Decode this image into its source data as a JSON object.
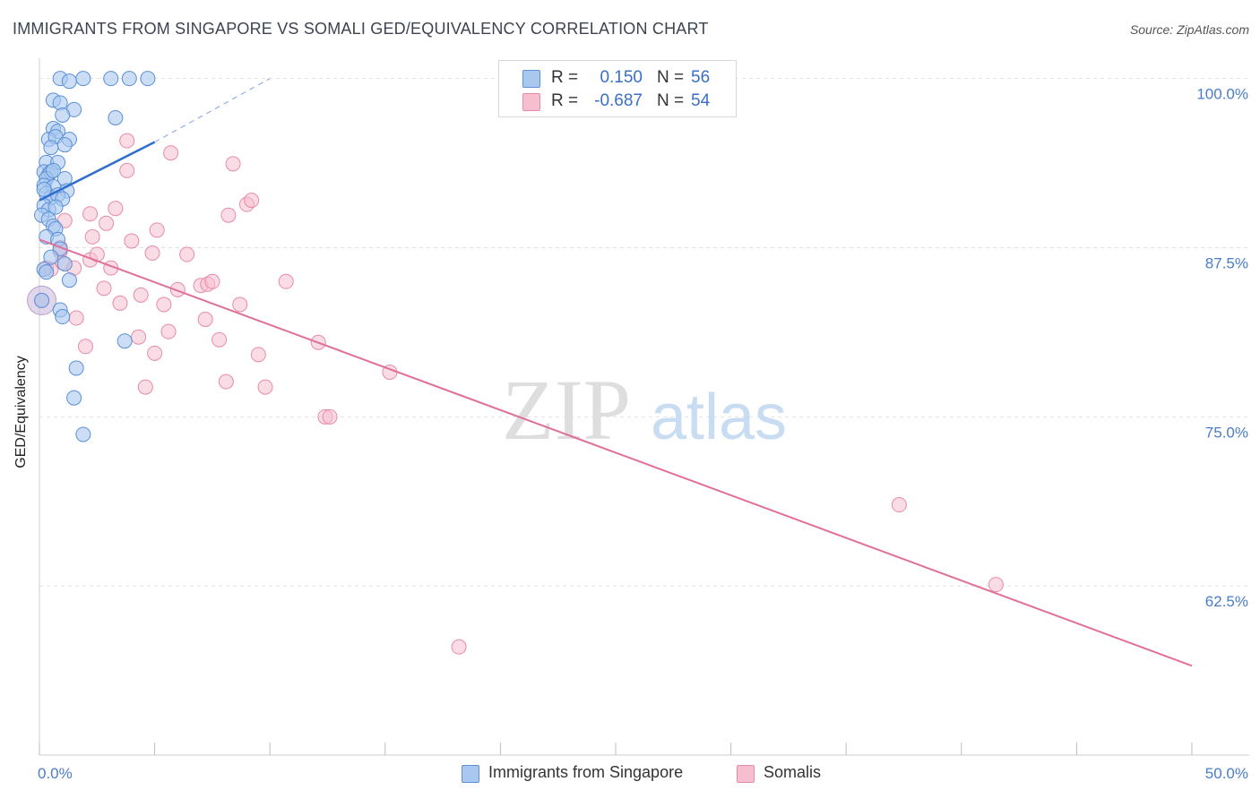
{
  "title": "IMMIGRANTS FROM SINGAPORE VS SOMALI GED/EQUIVALENCY CORRELATION CHART",
  "source": "Source: ZipAtlas.com",
  "watermark": {
    "zip": "ZIP",
    "atlas": "atlas"
  },
  "colors": {
    "blue_fill": "#a9c8f0",
    "blue_stroke": "#5b8fd6",
    "blue_line": "#2f6fd0",
    "pink_fill": "#f6bfd0",
    "pink_stroke": "#e88aa8",
    "pink_line": "#e0709a",
    "tick_label": "#4a7cc9",
    "grid": "#e2e2e2"
  },
  "legend": {
    "rows": [
      {
        "series": "Immigrants from Singapore",
        "r_label": "R =",
        "r_value": "0.150",
        "n_label": "N =",
        "n_value": "56"
      },
      {
        "series": "Somalis",
        "r_label": "R =",
        "r_value": "-0.687",
        "n_label": "N =",
        "n_value": "54"
      }
    ]
  },
  "bottom_legend": [
    "Immigrants from Singapore",
    "Somalis"
  ],
  "chart_data": {
    "type": "scatter",
    "title": "IMMIGRANTS FROM SINGAPORE VS SOMALI GED/EQUIVALENCY CORRELATION CHART",
    "xlabel": "",
    "ylabel": "GED/Equivalency",
    "xlim": [
      0,
      50
    ],
    "ylim": [
      50,
      101.5
    ],
    "x_tick_labels": [
      "0.0%",
      "50.0%"
    ],
    "y_ticks": [
      {
        "value": 62.5,
        "label": "62.5%"
      },
      {
        "value": 75,
        "label": "75.0%"
      },
      {
        "value": 87.5,
        "label": "87.5%"
      },
      {
        "value": 100,
        "label": "100.0%"
      }
    ],
    "series": [
      {
        "name": "Immigrants from Singapore",
        "points": [
          [
            0.9,
            100
          ],
          [
            1.3,
            99.8
          ],
          [
            1.9,
            100
          ],
          [
            3.1,
            100
          ],
          [
            3.9,
            100
          ],
          [
            4.7,
            100
          ],
          [
            0.6,
            98.4
          ],
          [
            0.9,
            98.2
          ],
          [
            1.5,
            97.7
          ],
          [
            1.0,
            97.3
          ],
          [
            3.3,
            97.1
          ],
          [
            0.6,
            96.3
          ],
          [
            0.8,
            96.1
          ],
          [
            0.4,
            95.5
          ],
          [
            0.7,
            95.7
          ],
          [
            1.3,
            95.5
          ],
          [
            0.5,
            94.9
          ],
          [
            1.1,
            95.1
          ],
          [
            0.3,
            93.8
          ],
          [
            0.8,
            93.8
          ],
          [
            0.2,
            93.1
          ],
          [
            0.4,
            92.9
          ],
          [
            0.5,
            93.1
          ],
          [
            0.3,
            92.6
          ],
          [
            1.1,
            92.6
          ],
          [
            0.2,
            92.1
          ],
          [
            0.6,
            92.0
          ],
          [
            1.2,
            91.7
          ],
          [
            0.3,
            91.5
          ],
          [
            0.5,
            91.2
          ],
          [
            0.8,
            91.4
          ],
          [
            1.0,
            91.1
          ],
          [
            0.2,
            90.6
          ],
          [
            0.4,
            90.3
          ],
          [
            0.7,
            90.5
          ],
          [
            0.1,
            89.9
          ],
          [
            0.4,
            89.6
          ],
          [
            0.6,
            89.1
          ],
          [
            0.7,
            88.9
          ],
          [
            0.3,
            88.3
          ],
          [
            0.8,
            88.1
          ],
          [
            0.9,
            87.4
          ],
          [
            0.5,
            86.8
          ],
          [
            1.1,
            86.3
          ],
          [
            0.2,
            85.9
          ],
          [
            0.3,
            85.7
          ],
          [
            1.3,
            85.1
          ],
          [
            0.1,
            83.6
          ],
          [
            0.9,
            82.9
          ],
          [
            1.0,
            82.4
          ],
          [
            3.7,
            80.6
          ],
          [
            1.6,
            78.6
          ],
          [
            1.5,
            76.4
          ],
          [
            1.9,
            73.7
          ],
          [
            0.2,
            91.8
          ],
          [
            0.6,
            93.2
          ]
        ],
        "trend": {
          "x": [
            0,
            5
          ],
          "y": [
            91.0,
            95.3
          ]
        },
        "trend_extension": {
          "x": [
            5,
            10
          ],
          "y": [
            95.3,
            100.0
          ]
        }
      },
      {
        "name": "Somalis",
        "points": [
          [
            0.1,
            83.6
          ],
          [
            0.3,
            86.0
          ],
          [
            0.5,
            85.9
          ],
          [
            0.9,
            87.2
          ],
          [
            1.0,
            86.4
          ],
          [
            1.1,
            89.5
          ],
          [
            1.5,
            86.0
          ],
          [
            1.6,
            82.3
          ],
          [
            2.0,
            80.2
          ],
          [
            2.2,
            86.6
          ],
          [
            2.2,
            90.0
          ],
          [
            2.3,
            88.3
          ],
          [
            2.5,
            87.0
          ],
          [
            2.8,
            84.5
          ],
          [
            2.9,
            89.3
          ],
          [
            3.1,
            86.0
          ],
          [
            3.3,
            90.4
          ],
          [
            3.5,
            83.4
          ],
          [
            3.8,
            93.2
          ],
          [
            3.8,
            95.4
          ],
          [
            4.0,
            88.0
          ],
          [
            4.3,
            80.9
          ],
          [
            4.4,
            84.0
          ],
          [
            4.6,
            77.2
          ],
          [
            4.9,
            87.1
          ],
          [
            5.0,
            79.7
          ],
          [
            5.1,
            88.8
          ],
          [
            5.4,
            83.3
          ],
          [
            5.6,
            81.3
          ],
          [
            5.7,
            94.5
          ],
          [
            6.0,
            84.4
          ],
          [
            6.4,
            87.0
          ],
          [
            7.0,
            84.7
          ],
          [
            7.2,
            82.2
          ],
          [
            7.3,
            84.8
          ],
          [
            7.5,
            85.0
          ],
          [
            7.8,
            80.7
          ],
          [
            8.1,
            77.6
          ],
          [
            8.2,
            89.9
          ],
          [
            8.4,
            93.7
          ],
          [
            8.7,
            83.3
          ],
          [
            9.0,
            90.7
          ],
          [
            9.2,
            91.0
          ],
          [
            9.5,
            79.6
          ],
          [
            9.8,
            77.2
          ],
          [
            10.7,
            85.0
          ],
          [
            12.1,
            80.5
          ],
          [
            12.4,
            75.0
          ],
          [
            12.6,
            75.0
          ],
          [
            15.2,
            78.3
          ],
          [
            18.2,
            58.0
          ],
          [
            37.3,
            68.5
          ],
          [
            41.5,
            62.6
          ],
          [
            0.9,
            87.5
          ]
        ],
        "trend": {
          "x": [
            0,
            50
          ],
          "y": [
            88.1,
            56.6
          ]
        }
      }
    ]
  }
}
